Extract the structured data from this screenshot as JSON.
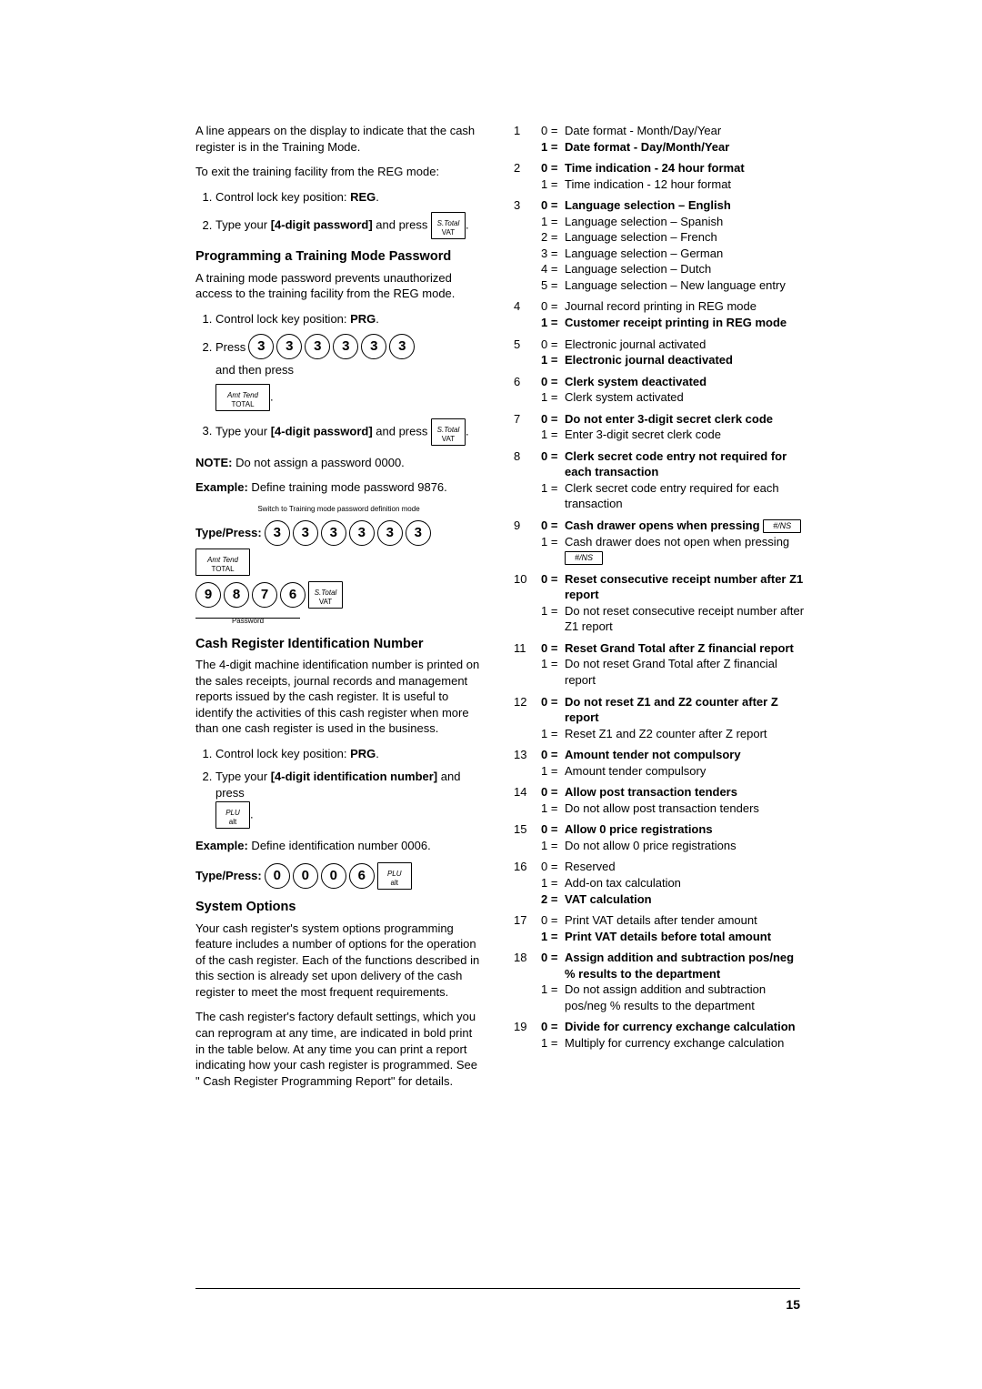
{
  "page_number": "15",
  "left": {
    "intro": "A line appears on the display to indicate that the cash register is in the Training Mode.",
    "exit_reg": "To exit the training facility from the REG mode:",
    "step_reg1_pre": "Control lock key position: ",
    "step_reg1_val": "REG",
    "step_reg2_pre": "Type your ",
    "step_reg2_val": "[4-digit password]",
    "step_reg2_post": " and press ",
    "h_pwd": "Programming a Training Mode Password",
    "pwd_intro": "A training mode password prevents unauthorized access to the training facility from the REG mode.",
    "pwd_step1_pre": "Control lock key position: ",
    "pwd_step1_val": "PRG",
    "pwd_step2_pre": "Press ",
    "pwd_step2_post": " and then press",
    "pwd_step3_pre": "Type your ",
    "pwd_step3_val": "[4-digit password]",
    "pwd_step3_post": " and press ",
    "note_label": "NOTE:",
    "note_text": " Do not assign a password 0000.",
    "example_label": "Example:",
    "example_text": " Define training mode password 9876.",
    "annot_switch": "Switch to Training mode password definition mode",
    "annot_password": "Password",
    "type_press": "Type/Press:",
    "h_id": "Cash Register Identification Number",
    "id_para": "The 4-digit machine identification number is printed on the sales receipts, journal records and management reports issued by the cash register. It is useful to identify the activities of this cash register when more than one cash register is used in the business.",
    "id_step1_pre": "Control lock key position: ",
    "id_step1_val": "PRG",
    "id_step2_pre": "Type your ",
    "id_step2_val": "[4-digit identification number]",
    "id_step2_post": " and press",
    "example2_text": " Define identification number 0006.",
    "h_sys": "System Options",
    "sys_para1": "Your cash register's system options programming feature includes a number of options for the operation of the cash register. Each of the functions described in this section is already set upon delivery of the cash register to meet the most frequent requirements.",
    "sys_para2": "The cash register's factory default settings, which you can reprogram at any time, are indicated in bold print in the table below. At any time you can print a report indicating how your cash register is programmed. See \" Cash Register Programming Report\" for details.",
    "keys": {
      "stotal_top": "S.Total",
      "stotal_bot": "VAT",
      "amt_top": "Amt Tend",
      "amt_bot": "TOTAL",
      "plu_top": "PLU",
      "plu_bot": "alt",
      "ns": "#/NS"
    },
    "digits3": [
      "3",
      "3",
      "3",
      "3",
      "3",
      "3"
    ],
    "digits9876": [
      "9",
      "8",
      "7",
      "6"
    ],
    "digits0006": [
      "0",
      "0",
      "0",
      "6"
    ]
  },
  "options": [
    {
      "n": "1",
      "rows": [
        {
          "k": "0 =",
          "v": "Date format - Month/Day/Year",
          "b": false
        },
        {
          "k": "1 =",
          "v": "Date format - Day/Month/Year",
          "b": true
        }
      ]
    },
    {
      "n": "2",
      "rows": [
        {
          "k": "0 =",
          "v": "Time indication - 24 hour format",
          "b": true
        },
        {
          "k": "1 =",
          "v": "Time indication - 12 hour format",
          "b": false
        }
      ]
    },
    {
      "n": "3",
      "rows": [
        {
          "k": "0 =",
          "v": "Language selection – English",
          "b": true
        },
        {
          "k": "1 =",
          "v": "Language selection – Spanish",
          "b": false
        },
        {
          "k": "2 =",
          "v": "Language selection – French",
          "b": false
        },
        {
          "k": "3 =",
          "v": "Language selection – German",
          "b": false
        },
        {
          "k": "4 =",
          "v": "Language selection – Dutch",
          "b": false
        },
        {
          "k": "5 =",
          "v": "Language selection – New language entry",
          "b": false
        }
      ]
    },
    {
      "n": "4",
      "rows": [
        {
          "k": "0 =",
          "v": "Journal record printing in REG mode",
          "b": false
        },
        {
          "k": "1 =",
          "v": "Customer receipt printing in REG mode",
          "b": true
        }
      ]
    },
    {
      "n": "5",
      "rows": [
        {
          "k": "0 =",
          "v": "Electronic journal activated",
          "b": false
        },
        {
          "k": "1 =",
          "v": "Electronic journal deactivated",
          "b": true
        }
      ]
    },
    {
      "n": "6",
      "rows": [
        {
          "k": "0 =",
          "v": "Clerk system deactivated",
          "b": true
        },
        {
          "k": "1 =",
          "v": "Clerk system activated",
          "b": false
        }
      ]
    },
    {
      "n": "7",
      "rows": [
        {
          "k": "0 =",
          "v": "Do not enter 3-digit secret clerk code",
          "b": true
        },
        {
          "k": "1 =",
          "v": "Enter 3-digit secret clerk code",
          "b": false
        }
      ]
    },
    {
      "n": "8",
      "rows": [
        {
          "k": "0 =",
          "v": "Clerk secret code entry not required for each transaction",
          "b": true
        },
        {
          "k": "1 =",
          "v": "Clerk secret code entry required for each transaction",
          "b": false
        }
      ]
    },
    {
      "n": "9",
      "rows": [
        {
          "k": "0 =",
          "v": "Cash drawer opens when pressing",
          "b": true,
          "ns": true
        },
        {
          "k": "1 =",
          "v": "Cash drawer does not open when pressing",
          "b": false,
          "ns": true
        }
      ]
    },
    {
      "n": "10",
      "rows": [
        {
          "k": "0 =",
          "v": "Reset consecutive receipt number after Z1 report",
          "b": true
        },
        {
          "k": "1 =",
          "v": "Do not reset consecutive receipt number after Z1 report",
          "b": false
        }
      ]
    },
    {
      "n": "11",
      "rows": [
        {
          "k": "0 =",
          "v": "Reset Grand Total after Z financial report",
          "b": true
        },
        {
          "k": "1 =",
          "v": "Do not reset Grand Total after Z financial report",
          "b": false
        }
      ]
    },
    {
      "n": "12",
      "rows": [
        {
          "k": "0 =",
          "v": "Do not reset Z1 and Z2 counter after Z report",
          "b": true
        },
        {
          "k": "1 =",
          "v": "Reset Z1 and Z2 counter after Z report",
          "b": false
        }
      ]
    },
    {
      "n": "13",
      "rows": [
        {
          "k": "0 =",
          "v": "Amount tender not compulsory",
          "b": true
        },
        {
          "k": "1 =",
          "v": "Amount tender compulsory",
          "b": false
        }
      ]
    },
    {
      "n": "14",
      "rows": [
        {
          "k": "0 =",
          "v": "Allow post transaction tenders",
          "b": true
        },
        {
          "k": "1 =",
          "v": "Do not allow post transaction tenders",
          "b": false
        }
      ]
    },
    {
      "n": "15",
      "rows": [
        {
          "k": "0 =",
          "v": "Allow 0 price registrations",
          "b": true
        },
        {
          "k": "1 =",
          "v": "Do not allow 0 price registrations",
          "b": false
        }
      ]
    },
    {
      "n": "16",
      "rows": [
        {
          "k": "0 =",
          "v": "Reserved",
          "b": false
        },
        {
          "k": "1 =",
          "v": "Add-on tax calculation",
          "b": false
        },
        {
          "k": "2 =",
          "v": "VAT calculation",
          "b": true
        }
      ]
    },
    {
      "n": "17",
      "rows": [
        {
          "k": "0 =",
          "v": "Print VAT details after tender amount",
          "b": false
        },
        {
          "k": "1 =",
          "v": "Print VAT details before total amount",
          "b": true
        }
      ]
    },
    {
      "n": "18",
      "rows": [
        {
          "k": "0 =",
          "v": "Assign addition and subtraction pos/neg % results to the department",
          "b": true
        },
        {
          "k": "1 =",
          "v": "Do not assign addition and subtraction pos/neg % results to the department",
          "b": false
        }
      ]
    },
    {
      "n": "19",
      "rows": [
        {
          "k": "0 =",
          "v": "Divide for currency exchange calculation",
          "b": true
        },
        {
          "k": "1 =",
          "v": "Multiply for currency exchange calculation",
          "b": false
        }
      ]
    }
  ]
}
